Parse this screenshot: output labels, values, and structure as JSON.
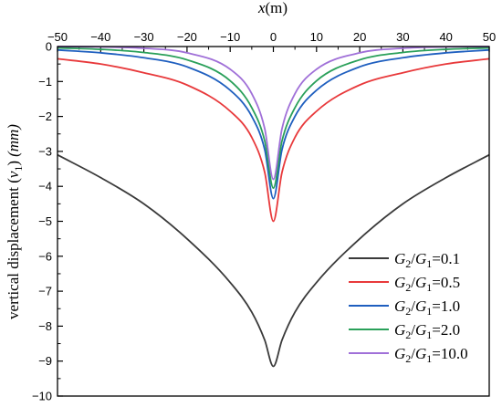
{
  "chart_data": {
    "type": "line",
    "title": "",
    "xlabel_var": "x",
    "xlabel_unit": "(m)",
    "ylabel_text": "vertical displacement (",
    "ylabel_var": "v",
    "ylabel_sub": "1",
    "ylabel_close": ")",
    "ylabel_unit": "(mm)",
    "x_axis_position": "top",
    "xlim": [
      -50,
      50
    ],
    "ylim": [
      -10,
      0
    ],
    "xticks": [
      -50,
      -40,
      -30,
      -20,
      -10,
      0,
      10,
      20,
      30,
      40,
      50
    ],
    "yticks": [
      0,
      -1,
      -2,
      -3,
      -4,
      -5,
      -6,
      -7,
      -8,
      -9,
      -10
    ],
    "grid": false,
    "legend_position": "bottom-right",
    "series": [
      {
        "name": "G2/G1=0.1",
        "ratio": "0.1",
        "color": "#3a3a3a",
        "x": [
          -50,
          -40,
          -30,
          -20,
          -10,
          -5,
          -2,
          0,
          2,
          5,
          10,
          20,
          30,
          40,
          50
        ],
        "y": [
          -3.1,
          -3.75,
          -4.5,
          -5.5,
          -6.75,
          -7.6,
          -8.4,
          -9.15,
          -8.4,
          -7.6,
          -6.75,
          -5.5,
          -4.5,
          -3.75,
          -3.1
        ]
      },
      {
        "name": "G2/G1=0.5",
        "ratio": "0.5",
        "color": "#e8393b",
        "x": [
          -50,
          -40,
          -30,
          -20,
          -10,
          -5,
          -2,
          0,
          2,
          5,
          10,
          20,
          30,
          40,
          50
        ],
        "y": [
          -0.35,
          -0.5,
          -0.75,
          -1.1,
          -1.85,
          -2.6,
          -3.6,
          -5.0,
          -3.6,
          -2.6,
          -1.85,
          -1.1,
          -0.75,
          -0.5,
          -0.35
        ]
      },
      {
        "name": "G2/G1=1.0",
        "ratio": "1.0",
        "color": "#1f5fbf",
        "x": [
          -50,
          -40,
          -30,
          -20,
          -10,
          -5,
          -2,
          0,
          2,
          5,
          10,
          20,
          30,
          40,
          50
        ],
        "y": [
          -0.1,
          -0.18,
          -0.32,
          -0.58,
          -1.25,
          -2.0,
          -2.95,
          -4.35,
          -2.95,
          -2.0,
          -1.25,
          -0.58,
          -0.32,
          -0.18,
          -0.1
        ]
      },
      {
        "name": "G2/G1=2.0",
        "ratio": "2.0",
        "color": "#2aa05a",
        "x": [
          -50,
          -40,
          -30,
          -20,
          -10,
          -5,
          -2,
          0,
          2,
          5,
          10,
          20,
          30,
          40,
          50
        ],
        "y": [
          -0.04,
          -0.08,
          -0.17,
          -0.38,
          -0.98,
          -1.75,
          -2.7,
          -4.05,
          -2.7,
          -1.75,
          -0.98,
          -0.38,
          -0.17,
          -0.08,
          -0.04
        ]
      },
      {
        "name": "G2/G1=10.0",
        "ratio": "10.0",
        "color": "#a070d8",
        "x": [
          -50,
          -40,
          -30,
          -20,
          -10,
          -5,
          -2,
          0,
          2,
          5,
          10,
          20,
          30,
          40,
          50
        ],
        "y": [
          0,
          -0.01,
          -0.05,
          -0.18,
          -0.65,
          -1.35,
          -2.35,
          -3.8,
          -2.35,
          -1.35,
          -0.65,
          -0.18,
          -0.05,
          -0.01,
          0
        ]
      }
    ]
  }
}
